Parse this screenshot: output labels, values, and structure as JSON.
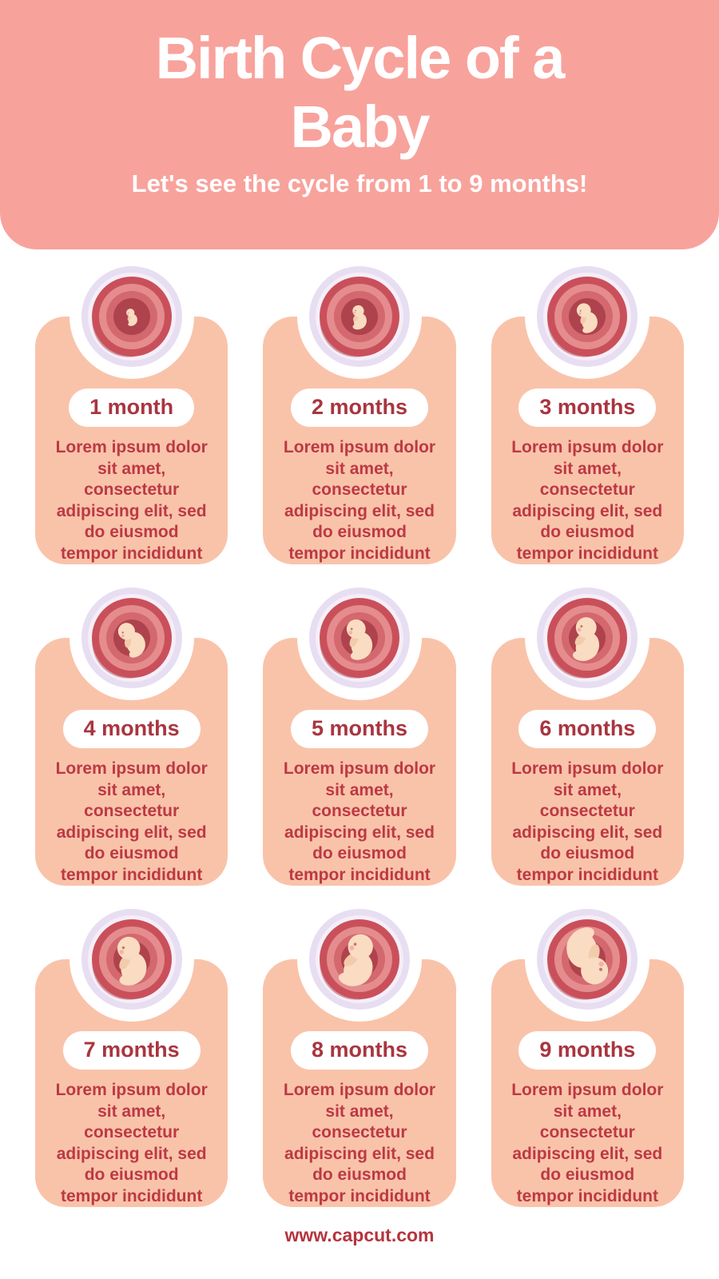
{
  "header": {
    "title": "Birth Cycle of a\nBaby",
    "subtitle": "Let's see the cycle from 1 to 9 months!",
    "background_color": "#F8A29C",
    "text_color": "#FFFFFF"
  },
  "cards": {
    "body_text": "Lorem ipsum dolor\nsit amet,\nconsectetur\nadipiscing elit, sed\ndo eiusmod\ntempor incididunt",
    "background_color": "#F9C3AA",
    "pill_background": "#FFFFFF",
    "label_color": "#A93540",
    "body_color": "#BC3944"
  },
  "months": [
    {
      "label": "1 month",
      "icon": "fetus-in-womb-icon",
      "fetus_scale": 0.3,
      "fetus_rotate": 0
    },
    {
      "label": "2 months",
      "icon": "fetus-in-womb-icon",
      "fetus_scale": 0.42,
      "fetus_rotate": 8
    },
    {
      "label": "3 months",
      "icon": "fetus-in-womb-icon",
      "fetus_scale": 0.52,
      "fetus_rotate": -8
    },
    {
      "label": "4 months",
      "icon": "fetus-in-womb-icon",
      "fetus_scale": 0.62,
      "fetus_rotate": -18
    },
    {
      "label": "5 months",
      "icon": "fetus-in-womb-icon",
      "fetus_scale": 0.7,
      "fetus_rotate": 0
    },
    {
      "label": "6 months",
      "icon": "fetus-in-womb-icon",
      "fetus_scale": 0.76,
      "fetus_rotate": 15
    },
    {
      "label": "7 months",
      "icon": "fetus-in-womb-icon",
      "fetus_scale": 0.84,
      "fetus_rotate": 5
    },
    {
      "label": "8 months",
      "icon": "fetus-in-womb-icon",
      "fetus_scale": 0.92,
      "fetus_rotate": 25
    },
    {
      "label": "9 months",
      "icon": "fetus-in-womb-icon",
      "fetus_scale": 1.0,
      "fetus_rotate": 168
    }
  ],
  "illustration_colors": {
    "halo": "#FFFFFF",
    "ring_lavender": "#E7DEF2",
    "ring_pale": "#F5EEF8",
    "womb_outer": "#C9505A",
    "womb_light": "#E58C8E",
    "womb_mid": "#D4686F",
    "womb_core": "#AF434D",
    "fetus_skin": "#F9DCC2",
    "fetus_arm": "#F2CBAB",
    "eye": "#B97E63",
    "cheek": "#F5ACA4"
  },
  "footer": {
    "website": "www.capcut.com",
    "color": "#B5343D"
  }
}
